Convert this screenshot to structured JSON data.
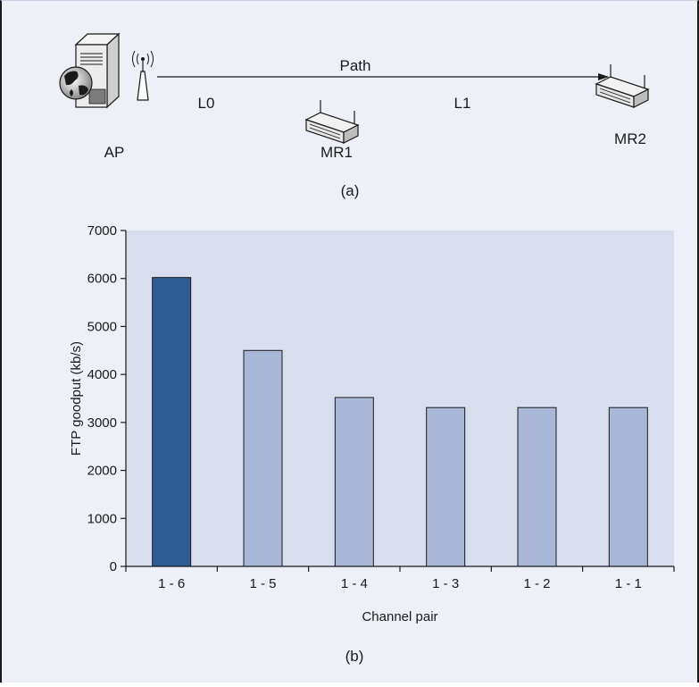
{
  "diagram": {
    "nodes": {
      "ap": "AP",
      "mr1": "MR1",
      "mr2": "MR2"
    },
    "links": {
      "l0": "L0",
      "l1": "L1",
      "path": "Path"
    },
    "caption": "(a)",
    "icons": [
      "server-icon",
      "globe-icon",
      "antenna-icon",
      "mesh-router-icon"
    ]
  },
  "chart_caption": "(b)",
  "colors": {
    "panel_background": "#eef0f8",
    "plot_background": "#d9deee",
    "bar_highlight": "#2d5d94",
    "bar_default": "#a9b8d6",
    "bar_outline": "#1a1a1a"
  },
  "chart_data": {
    "type": "bar",
    "xlabel": "Channel pair",
    "ylabel": "FTP goodput (kb/s)",
    "categories": [
      "1 - 6",
      "1 - 5",
      "1 - 4",
      "1 - 3",
      "1 - 2",
      "1 - 1"
    ],
    "values": [
      6020,
      4500,
      3520,
      3310,
      3310,
      3310
    ],
    "highlighted_category": "1 - 6",
    "ylim": [
      0,
      7000
    ],
    "yticks": [
      0,
      1000,
      2000,
      3000,
      4000,
      5000,
      6000,
      7000
    ],
    "grid": false,
    "legend": "none"
  }
}
